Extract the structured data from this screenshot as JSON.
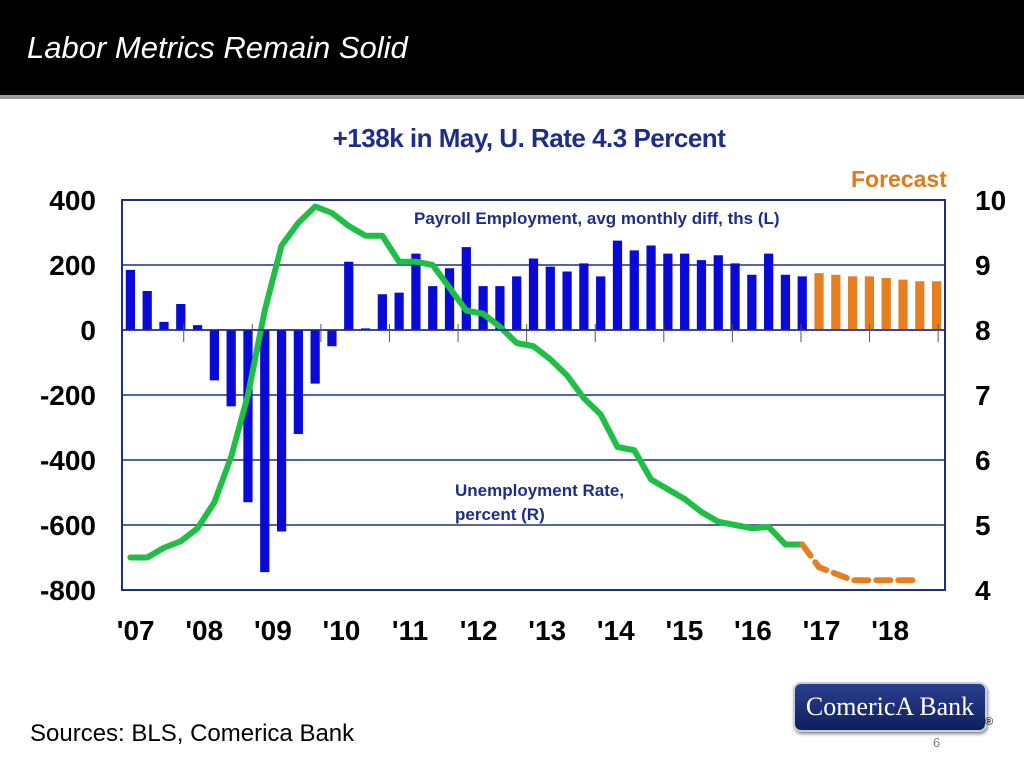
{
  "slide_title": "Labor Metrics Remain Solid",
  "sources": "Sources: BLS, Comerica Bank",
  "page_number": "6",
  "logo_text": "ComericA Bank",
  "logo_mark": "®",
  "colors": {
    "bars_actual": "#0a0ad6",
    "bars_forecast": "#e67e22",
    "line": "#1fbf45",
    "line_forecast": "#e67e22",
    "title": "#1f2d8a"
  },
  "chart_data": {
    "type": "bar+line",
    "title": "+138k in May, U. Rate 4.3 Percent",
    "forecast_label": "Forecast",
    "categories": [
      "'07",
      "'08",
      "'09",
      "'10",
      "'11",
      "'12",
      "'13",
      "'14",
      "'15",
      "'16",
      "'17",
      "'18"
    ],
    "y_left": {
      "ticks": [
        "400",
        "200",
        "0",
        "-200",
        "-400",
        "-600",
        "-800"
      ],
      "range": [
        -800,
        400
      ]
    },
    "y_right": {
      "ticks": [
        "10",
        "9",
        "8",
        "7",
        "6",
        "5",
        "4"
      ],
      "range": [
        4,
        10
      ]
    },
    "bar_series": {
      "name": "Payroll Employment, avg monthly diff, ths (L)",
      "actual": [
        185,
        120,
        25,
        80,
        15,
        -155,
        -235,
        -530,
        -745,
        -620,
        -320,
        -165,
        -50,
        210,
        5,
        110,
        115,
        235,
        135,
        190,
        255,
        135,
        135,
        165,
        220,
        195,
        180,
        205,
        165,
        275,
        245,
        260,
        235,
        235,
        215,
        230,
        205,
        170,
        235,
        170,
        165
      ],
      "forecast": [
        175,
        170,
        165,
        165,
        160,
        155,
        150,
        150
      ]
    },
    "line_series": {
      "name": "Unemployment Rate,",
      "name_line2": "percent (R)",
      "actual": [
        4.5,
        4.5,
        4.65,
        4.75,
        4.95,
        5.35,
        6.05,
        7.0,
        8.3,
        9.3,
        9.65,
        9.9,
        9.8,
        9.6,
        9.45,
        9.45,
        9.05,
        9.05,
        9.0,
        8.65,
        8.3,
        8.25,
        8.05,
        7.8,
        7.75,
        7.55,
        7.3,
        6.95,
        6.7,
        6.2,
        6.15,
        5.7,
        5.55,
        5.4,
        5.2,
        5.05,
        5.0,
        4.95,
        4.97,
        4.7,
        4.7
      ],
      "forecast": [
        4.7,
        4.35,
        4.25,
        4.15,
        4.15,
        4.15,
        4.15,
        4.15
      ]
    }
  }
}
